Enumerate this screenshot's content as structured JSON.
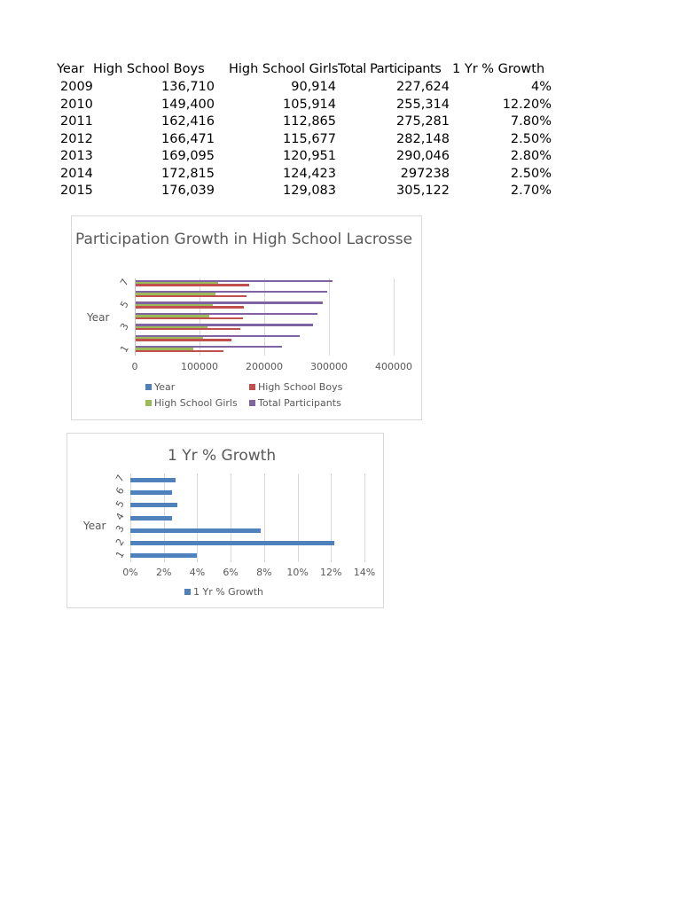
{
  "table": {
    "headers": [
      "Year",
      "High School Boys",
      "High School Girls",
      "Total Participants",
      "1 Yr % Growth"
    ],
    "rows": [
      [
        "2009",
        "136,710",
        "90,914",
        "227,624",
        "4%"
      ],
      [
        "2010",
        "149,400",
        "105,914",
        "255,314",
        "12.20%"
      ],
      [
        "2011",
        "162,416",
        "112,865",
        "275,281",
        "7.80%"
      ],
      [
        "2012",
        "166,471",
        "115,677",
        "282,148",
        "2.50%"
      ],
      [
        "2013",
        "169,095",
        "120,951",
        "290,046",
        "2.80%"
      ],
      [
        "2014",
        "172,815",
        "124,423",
        "297238",
        "2.50%"
      ],
      [
        "2015",
        "176,039",
        "129,083",
        "305,122",
        "2.70%"
      ]
    ]
  },
  "chart1": {
    "title": "Participation Growth in High School Lacrosse",
    "ylabel": "Year",
    "yticks": [
      "1",
      "3",
      "5",
      "7"
    ],
    "xticks": [
      "0",
      "100000",
      "200000",
      "300000",
      "400000"
    ],
    "legend": [
      "Year",
      "High School Boys",
      "High School Girls",
      "Total Participants"
    ]
  },
  "chart2": {
    "title": "1 Yr % Growth",
    "ylabel": "Year",
    "yticks": [
      "1",
      "2",
      "3",
      "4",
      "5",
      "6",
      "7"
    ],
    "xticks": [
      "0%",
      "2%",
      "4%",
      "6%",
      "8%",
      "10%",
      "12%",
      "14%"
    ],
    "legend": [
      "1 Yr % Growth"
    ]
  },
  "colors": {
    "year": "#4f81bd",
    "boys": "#c0504d",
    "girls": "#9bbb59",
    "total": "#8064a2",
    "growth": "#4f81bd"
  },
  "chart_data": [
    {
      "type": "bar",
      "orientation": "horizontal",
      "title": "Participation Growth in High School Lacrosse",
      "xlabel": "",
      "ylabel": "Year",
      "categories": [
        "1",
        "2",
        "3",
        "4",
        "5",
        "6",
        "7"
      ],
      "series": [
        {
          "name": "Year",
          "values": [
            2009,
            2010,
            2011,
            2012,
            2013,
            2014,
            2015
          ]
        },
        {
          "name": "High School Boys",
          "values": [
            136710,
            149400,
            162416,
            166471,
            169095,
            172815,
            176039
          ]
        },
        {
          "name": "High School Girls",
          "values": [
            90914,
            105914,
            112865,
            115677,
            120951,
            124423,
            129083
          ]
        },
        {
          "name": "Total Participants",
          "values": [
            227624,
            255314,
            275281,
            282148,
            290046,
            297238,
            305122
          ]
        }
      ],
      "xlim": [
        0,
        400000
      ],
      "xticks": [
        0,
        100000,
        200000,
        300000,
        400000
      ],
      "grid": true,
      "legend_position": "bottom"
    },
    {
      "type": "bar",
      "orientation": "horizontal",
      "title": "1 Yr % Growth",
      "xlabel": "",
      "ylabel": "Year",
      "categories": [
        "1",
        "2",
        "3",
        "4",
        "5",
        "6",
        "7"
      ],
      "series": [
        {
          "name": "1 Yr % Growth",
          "values": [
            4.0,
            12.2,
            7.8,
            2.5,
            2.8,
            2.5,
            2.7
          ]
        }
      ],
      "xlim": [
        0,
        14
      ],
      "xticks": [
        "0%",
        "2%",
        "4%",
        "6%",
        "8%",
        "10%",
        "12%",
        "14%"
      ],
      "grid": true,
      "legend_position": "bottom"
    }
  ]
}
